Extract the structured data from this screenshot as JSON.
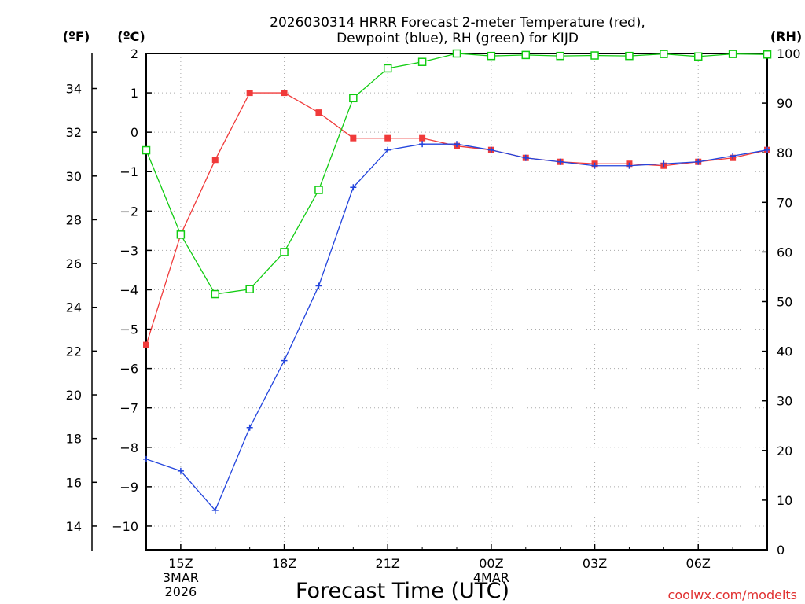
{
  "colors": {
    "temperature": "#f03a3a",
    "dewpoint": "#2244dd",
    "rh": "#11cc11",
    "grid": "#aaaaaa",
    "credit": "#e03030"
  },
  "chart_data": {
    "type": "line",
    "title": [
      "2026030314 HRRR Forecast 2-meter Temperature (red),",
      "Dewpoint (blue), RH (green) for KIJD"
    ],
    "xlabel": "Forecast Time (UTC)",
    "credit": "coolwx.com/modelts",
    "units": {
      "fahrenheit": "(ºF)",
      "celsius": "(ºC)",
      "rh": "(RH)"
    },
    "x_hours": [
      14,
      15,
      16,
      17,
      18,
      19,
      20,
      21,
      22,
      23,
      24,
      25,
      26,
      27,
      28,
      29,
      30,
      31,
      32
    ],
    "xlim": [
      14,
      32
    ],
    "x_ticks": [
      {
        "hour": 15,
        "lines": [
          "15Z",
          "3MAR",
          "2026"
        ]
      },
      {
        "hour": 18,
        "lines": [
          "18Z"
        ]
      },
      {
        "hour": 21,
        "lines": [
          "21Z"
        ]
      },
      {
        "hour": 24,
        "lines": [
          "00Z",
          "4MAR"
        ]
      },
      {
        "hour": 27,
        "lines": [
          "03Z"
        ]
      },
      {
        "hour": 30,
        "lines": [
          "06Z"
        ]
      }
    ],
    "y_celsius": {
      "range": [
        -10.6,
        2.0
      ],
      "ticks": [
        "2",
        "1",
        "0",
        "−1",
        "−2",
        "−3",
        "−4",
        "−5",
        "−6",
        "−7",
        "−8",
        "−9",
        "−10"
      ],
      "tick_values": [
        2,
        1,
        0,
        -1,
        -2,
        -3,
        -4,
        -5,
        -6,
        -7,
        -8,
        -9,
        -10
      ]
    },
    "y_fahrenheit": {
      "range": [
        12.92,
        35.6
      ],
      "ticks": [
        "34",
        "32",
        "30",
        "28",
        "26",
        "24",
        "22",
        "20",
        "18",
        "16",
        "14"
      ],
      "tick_values": [
        34,
        32,
        30,
        28,
        26,
        24,
        22,
        20,
        18,
        16,
        14
      ]
    },
    "y_rh": {
      "range": [
        0,
        100
      ],
      "ticks": [
        "100",
        "90",
        "80",
        "70",
        "60",
        "50",
        "40",
        "30",
        "20",
        "10",
        "0"
      ],
      "tick_values": [
        100,
        90,
        80,
        70,
        60,
        50,
        40,
        30,
        20,
        10,
        0
      ]
    },
    "series": [
      {
        "name": "Temperature",
        "unit": "C",
        "color_key": "temperature",
        "marker": "filled-square",
        "values": [
          -5.4,
          -2.6,
          -0.7,
          1.0,
          1.0,
          0.5,
          -0.15,
          -0.15,
          -0.15,
          -0.35,
          -0.45,
          -0.65,
          -0.75,
          -0.8,
          -0.8,
          -0.85,
          -0.75,
          -0.65,
          -0.45
        ]
      },
      {
        "name": "Dewpoint",
        "unit": "C",
        "color_key": "dewpoint",
        "marker": "plus",
        "values": [
          -8.3,
          -8.6,
          -9.6,
          -7.5,
          -5.8,
          -3.9,
          -1.4,
          -0.45,
          -0.3,
          -0.3,
          -0.45,
          -0.65,
          -0.75,
          -0.85,
          -0.85,
          -0.8,
          -0.75,
          -0.6,
          -0.45
        ]
      },
      {
        "name": "RH",
        "unit": "%",
        "color_key": "rh",
        "marker": "open-square",
        "values": [
          80.5,
          63.5,
          51.5,
          52.5,
          60,
          72.5,
          91,
          97,
          98.3,
          100,
          99.5,
          99.7,
          99.5,
          99.6,
          99.5,
          99.9,
          99.4,
          99.9,
          99.8
        ]
      }
    ]
  }
}
